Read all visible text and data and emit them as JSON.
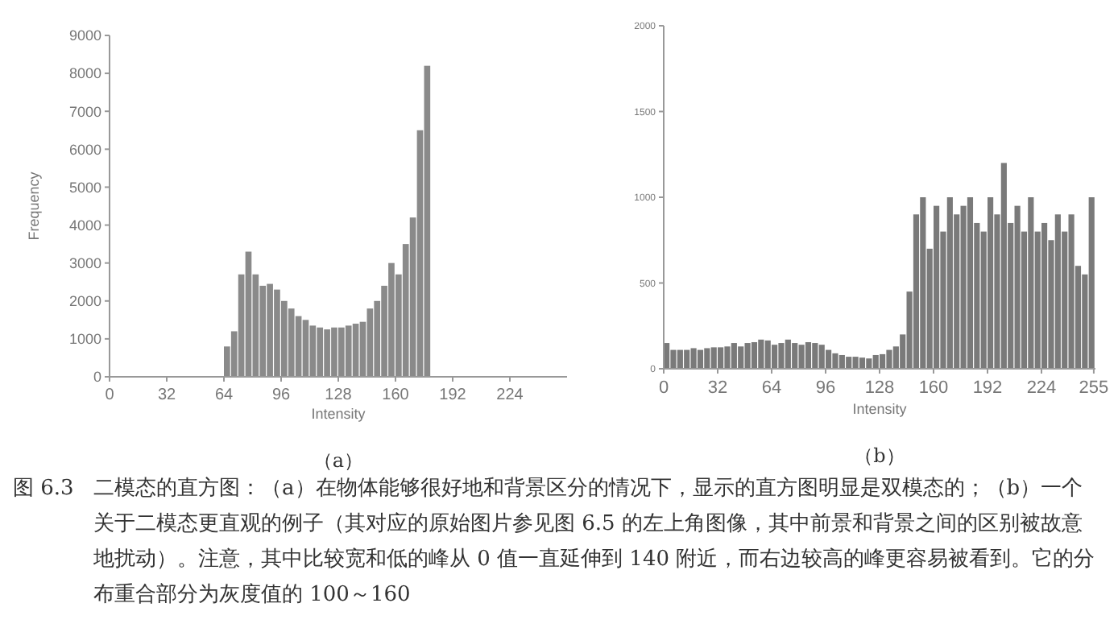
{
  "chart_data": [
    {
      "type": "histogram",
      "subtitle": "（a）",
      "xlabel": "Intensity",
      "ylabel": "Frequency",
      "color": "#8a8a8a",
      "bins": [
        64,
        68,
        72,
        76,
        80,
        84,
        88,
        92,
        96,
        100,
        104,
        108,
        112,
        116,
        120,
        124,
        128,
        132,
        136,
        140,
        144,
        148,
        152,
        156,
        160,
        164,
        168,
        172,
        176,
        180
      ],
      "values": [
        800,
        1200,
        2700,
        3300,
        2700,
        2400,
        2450,
        2300,
        2000,
        1800,
        1600,
        1500,
        1350,
        1300,
        1250,
        1300,
        1300,
        1350,
        1400,
        1450,
        1800,
        2000,
        2400,
        3000,
        2700,
        3500,
        4200,
        6500,
        8200
      ],
      "xlim": [
        0,
        256
      ],
      "ylim": [
        0,
        9000
      ],
      "xticks": [
        0,
        32,
        64,
        96,
        128,
        160,
        192,
        224
      ],
      "yticks": [
        0,
        1000,
        2000,
        3000,
        4000,
        5000,
        6000,
        7000,
        8000,
        9000
      ],
      "annotations": [
        "图 6.3",
        "二模态的直方图：（a）在物体能够很好地和背景区分的情况下，显示的直方图明显是双模态的；（b）一个关于二模态更直观的例子（其对应的原始图片参见图 6.5 的左上角图像，其中前景和背景之间的区别被故意地扰动）。注意，其中比较宽和低的峰从 0 值一直延伸到 140 附近，而右边较高的峰更容易被看到。它的分布重合部分为灰度值的 100～160"
      ]
    },
    {
      "type": "histogram",
      "subtitle": "（b）",
      "xlabel": "Intensity",
      "color": "#7a7a7a",
      "bins": [
        0,
        4,
        8,
        12,
        16,
        20,
        24,
        28,
        32,
        36,
        40,
        44,
        48,
        52,
        56,
        60,
        64,
        68,
        72,
        76,
        80,
        84,
        88,
        92,
        96,
        100,
        104,
        108,
        112,
        116,
        120,
        124,
        128,
        132,
        136,
        140,
        144,
        148,
        152,
        156,
        160,
        164,
        168,
        172,
        176,
        180,
        184,
        188,
        192,
        196,
        200,
        204,
        208,
        212,
        216,
        220,
        224,
        228,
        232,
        236,
        240,
        244,
        248,
        252,
        256
      ],
      "values": [
        150,
        110,
        110,
        110,
        120,
        110,
        120,
        125,
        125,
        130,
        150,
        130,
        150,
        155,
        170,
        165,
        140,
        150,
        170,
        150,
        140,
        155,
        150,
        140,
        110,
        90,
        80,
        70,
        70,
        65,
        60,
        80,
        85,
        110,
        130,
        200,
        450,
        900,
        1000,
        700,
        950,
        800,
        1000,
        900,
        950,
        1000,
        850,
        800,
        1000,
        900,
        1200,
        850,
        950,
        800,
        1000,
        800,
        850,
        750,
        900,
        800,
        900,
        600,
        550,
        1000
      ],
      "xlim": [
        0,
        256
      ],
      "ylim": [
        0,
        2000
      ],
      "xticks": [
        0,
        32,
        64,
        96,
        128,
        160,
        192,
        224,
        255
      ],
      "yticks": [
        0,
        500,
        1000,
        1500,
        2000
      ]
    }
  ]
}
